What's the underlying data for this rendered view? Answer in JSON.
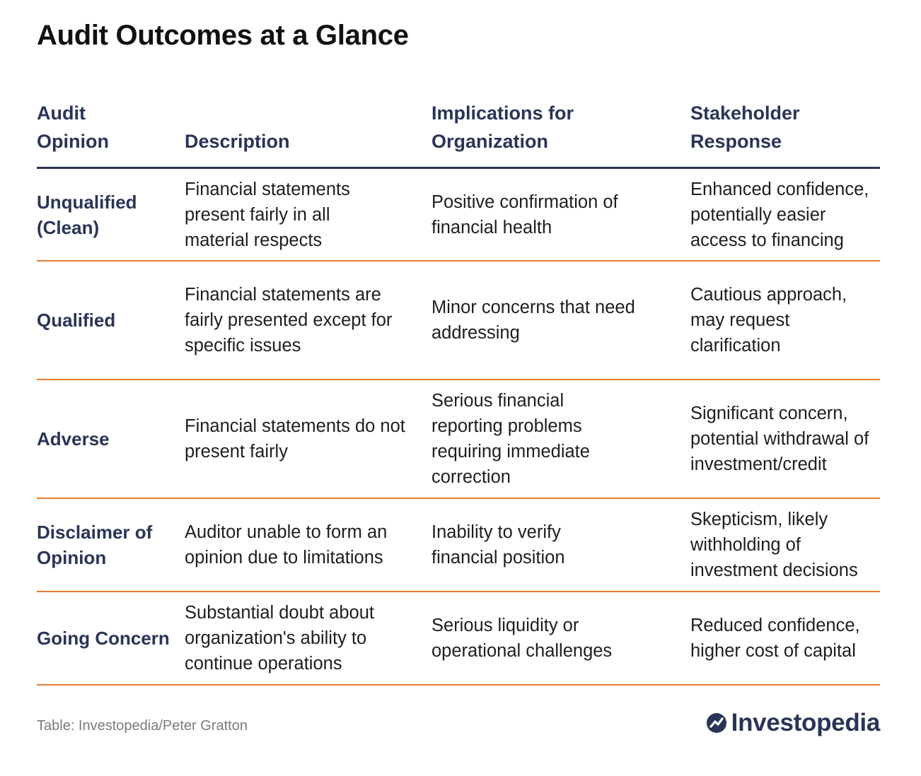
{
  "title": "Audit Outcomes at a Glance",
  "table": {
    "headers": [
      "Audit Opinion",
      "Description",
      "Implications for Organization",
      "Stakeholder Response"
    ],
    "rows": [
      {
        "opinion": "Unqualified (Clean)",
        "description": "Financial statements present fairly in all material respects",
        "implications": "Positive confirmation of financial health",
        "response": "Enhanced confidence, potentially easier access to financing"
      },
      {
        "opinion": "Qualified",
        "description": "Financial statements are fairly presented except for specific issues",
        "implications": "Minor concerns that need addressing",
        "response": "Cautious approach, may request clarification"
      },
      {
        "opinion": "Adverse",
        "description": "Financial statements do not present fairly",
        "implications": "Serious financial reporting problems requiring immediate correction",
        "response": "Significant concern, potential withdrawal of investment/credit"
      },
      {
        "opinion": "Disclaimer of Opinion",
        "description": "Auditor unable to form an opinion due to limitations",
        "implications": "Inability to verify financial position",
        "response": "Skepticism, likely withholding of investment decisions"
      },
      {
        "opinion": "Going Concern",
        "description": "Substantial doubt about organization's ability to continue operations",
        "implications": "Serious liquidity or operational challenges",
        "response": "Reduced confidence, higher cost of capital"
      }
    ]
  },
  "footer": {
    "source": "Table: Investopedia/Peter Gratton",
    "brand": "Investopedia",
    "brand_icon": "investopedia-logo-icon"
  },
  "colors": {
    "header_text": "#2a3456",
    "row_divider": "#e8792f",
    "source_text": "#7b7b7b"
  }
}
